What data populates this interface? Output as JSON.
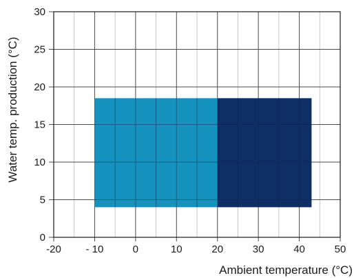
{
  "chart_data": {
    "type": "area",
    "title": "",
    "xlabel": "Ambient temperature (°C)",
    "ylabel": "Water temp. production (°C)",
    "xlim": [
      -20,
      50
    ],
    "ylim": [
      0,
      30
    ],
    "x_ticks": [
      -20,
      -10,
      0,
      10,
      20,
      30,
      40,
      50
    ],
    "x_tick_labels": [
      "-20",
      "- 10",
      "0",
      "10",
      "20",
      "30",
      "40",
      "50"
    ],
    "y_ticks": [
      0,
      5,
      10,
      15,
      20,
      25,
      30
    ],
    "y_tick_labels": [
      "0",
      "5",
      "10",
      "15",
      "20",
      "25",
      "30"
    ],
    "grid": true,
    "minor_x_step": 5,
    "regions": [
      {
        "x": [
          -10,
          20
        ],
        "y": [
          4,
          18.5
        ],
        "color": "#1592bd"
      },
      {
        "x": [
          20,
          43
        ],
        "y": [
          4,
          18.5
        ],
        "color": "#0e2f66"
      }
    ]
  }
}
